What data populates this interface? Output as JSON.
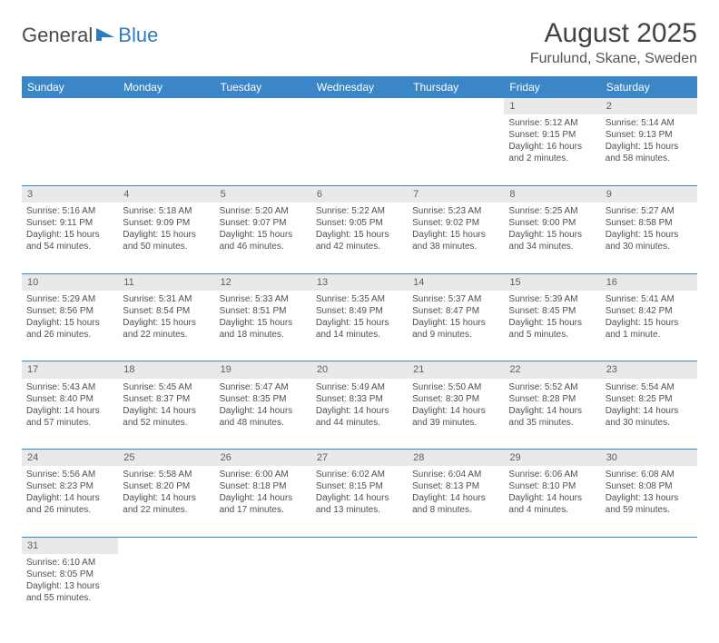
{
  "logo": {
    "part1": "General",
    "part2": "Blue"
  },
  "title": "August 2025",
  "location": "Furulund, Skane, Sweden",
  "colors": {
    "header_bg": "#3b86c6",
    "header_text": "#ffffff",
    "daynum_bg": "#e9e9e9",
    "cell_border": "#3b86c6",
    "text": "#505050",
    "logo_gray": "#4a4a4a",
    "logo_blue": "#2f7bbf"
  },
  "weekdays": [
    "Sunday",
    "Monday",
    "Tuesday",
    "Wednesday",
    "Thursday",
    "Friday",
    "Saturday"
  ],
  "weeks": [
    [
      null,
      null,
      null,
      null,
      null,
      {
        "d": "1",
        "sr": "Sunrise: 5:12 AM",
        "ss": "Sunset: 9:15 PM",
        "dl1": "Daylight: 16 hours",
        "dl2": "and 2 minutes."
      },
      {
        "d": "2",
        "sr": "Sunrise: 5:14 AM",
        "ss": "Sunset: 9:13 PM",
        "dl1": "Daylight: 15 hours",
        "dl2": "and 58 minutes."
      }
    ],
    [
      {
        "d": "3",
        "sr": "Sunrise: 5:16 AM",
        "ss": "Sunset: 9:11 PM",
        "dl1": "Daylight: 15 hours",
        "dl2": "and 54 minutes."
      },
      {
        "d": "4",
        "sr": "Sunrise: 5:18 AM",
        "ss": "Sunset: 9:09 PM",
        "dl1": "Daylight: 15 hours",
        "dl2": "and 50 minutes."
      },
      {
        "d": "5",
        "sr": "Sunrise: 5:20 AM",
        "ss": "Sunset: 9:07 PM",
        "dl1": "Daylight: 15 hours",
        "dl2": "and 46 minutes."
      },
      {
        "d": "6",
        "sr": "Sunrise: 5:22 AM",
        "ss": "Sunset: 9:05 PM",
        "dl1": "Daylight: 15 hours",
        "dl2": "and 42 minutes."
      },
      {
        "d": "7",
        "sr": "Sunrise: 5:23 AM",
        "ss": "Sunset: 9:02 PM",
        "dl1": "Daylight: 15 hours",
        "dl2": "and 38 minutes."
      },
      {
        "d": "8",
        "sr": "Sunrise: 5:25 AM",
        "ss": "Sunset: 9:00 PM",
        "dl1": "Daylight: 15 hours",
        "dl2": "and 34 minutes."
      },
      {
        "d": "9",
        "sr": "Sunrise: 5:27 AM",
        "ss": "Sunset: 8:58 PM",
        "dl1": "Daylight: 15 hours",
        "dl2": "and 30 minutes."
      }
    ],
    [
      {
        "d": "10",
        "sr": "Sunrise: 5:29 AM",
        "ss": "Sunset: 8:56 PM",
        "dl1": "Daylight: 15 hours",
        "dl2": "and 26 minutes."
      },
      {
        "d": "11",
        "sr": "Sunrise: 5:31 AM",
        "ss": "Sunset: 8:54 PM",
        "dl1": "Daylight: 15 hours",
        "dl2": "and 22 minutes."
      },
      {
        "d": "12",
        "sr": "Sunrise: 5:33 AM",
        "ss": "Sunset: 8:51 PM",
        "dl1": "Daylight: 15 hours",
        "dl2": "and 18 minutes."
      },
      {
        "d": "13",
        "sr": "Sunrise: 5:35 AM",
        "ss": "Sunset: 8:49 PM",
        "dl1": "Daylight: 15 hours",
        "dl2": "and 14 minutes."
      },
      {
        "d": "14",
        "sr": "Sunrise: 5:37 AM",
        "ss": "Sunset: 8:47 PM",
        "dl1": "Daylight: 15 hours",
        "dl2": "and 9 minutes."
      },
      {
        "d": "15",
        "sr": "Sunrise: 5:39 AM",
        "ss": "Sunset: 8:45 PM",
        "dl1": "Daylight: 15 hours",
        "dl2": "and 5 minutes."
      },
      {
        "d": "16",
        "sr": "Sunrise: 5:41 AM",
        "ss": "Sunset: 8:42 PM",
        "dl1": "Daylight: 15 hours",
        "dl2": "and 1 minute."
      }
    ],
    [
      {
        "d": "17",
        "sr": "Sunrise: 5:43 AM",
        "ss": "Sunset: 8:40 PM",
        "dl1": "Daylight: 14 hours",
        "dl2": "and 57 minutes."
      },
      {
        "d": "18",
        "sr": "Sunrise: 5:45 AM",
        "ss": "Sunset: 8:37 PM",
        "dl1": "Daylight: 14 hours",
        "dl2": "and 52 minutes."
      },
      {
        "d": "19",
        "sr": "Sunrise: 5:47 AM",
        "ss": "Sunset: 8:35 PM",
        "dl1": "Daylight: 14 hours",
        "dl2": "and 48 minutes."
      },
      {
        "d": "20",
        "sr": "Sunrise: 5:49 AM",
        "ss": "Sunset: 8:33 PM",
        "dl1": "Daylight: 14 hours",
        "dl2": "and 44 minutes."
      },
      {
        "d": "21",
        "sr": "Sunrise: 5:50 AM",
        "ss": "Sunset: 8:30 PM",
        "dl1": "Daylight: 14 hours",
        "dl2": "and 39 minutes."
      },
      {
        "d": "22",
        "sr": "Sunrise: 5:52 AM",
        "ss": "Sunset: 8:28 PM",
        "dl1": "Daylight: 14 hours",
        "dl2": "and 35 minutes."
      },
      {
        "d": "23",
        "sr": "Sunrise: 5:54 AM",
        "ss": "Sunset: 8:25 PM",
        "dl1": "Daylight: 14 hours",
        "dl2": "and 30 minutes."
      }
    ],
    [
      {
        "d": "24",
        "sr": "Sunrise: 5:56 AM",
        "ss": "Sunset: 8:23 PM",
        "dl1": "Daylight: 14 hours",
        "dl2": "and 26 minutes."
      },
      {
        "d": "25",
        "sr": "Sunrise: 5:58 AM",
        "ss": "Sunset: 8:20 PM",
        "dl1": "Daylight: 14 hours",
        "dl2": "and 22 minutes."
      },
      {
        "d": "26",
        "sr": "Sunrise: 6:00 AM",
        "ss": "Sunset: 8:18 PM",
        "dl1": "Daylight: 14 hours",
        "dl2": "and 17 minutes."
      },
      {
        "d": "27",
        "sr": "Sunrise: 6:02 AM",
        "ss": "Sunset: 8:15 PM",
        "dl1": "Daylight: 14 hours",
        "dl2": "and 13 minutes."
      },
      {
        "d": "28",
        "sr": "Sunrise: 6:04 AM",
        "ss": "Sunset: 8:13 PM",
        "dl1": "Daylight: 14 hours",
        "dl2": "and 8 minutes."
      },
      {
        "d": "29",
        "sr": "Sunrise: 6:06 AM",
        "ss": "Sunset: 8:10 PM",
        "dl1": "Daylight: 14 hours",
        "dl2": "and 4 minutes."
      },
      {
        "d": "30",
        "sr": "Sunrise: 6:08 AM",
        "ss": "Sunset: 8:08 PM",
        "dl1": "Daylight: 13 hours",
        "dl2": "and 59 minutes."
      }
    ],
    [
      {
        "d": "31",
        "sr": "Sunrise: 6:10 AM",
        "ss": "Sunset: 8:05 PM",
        "dl1": "Daylight: 13 hours",
        "dl2": "and 55 minutes."
      },
      null,
      null,
      null,
      null,
      null,
      null
    ]
  ]
}
